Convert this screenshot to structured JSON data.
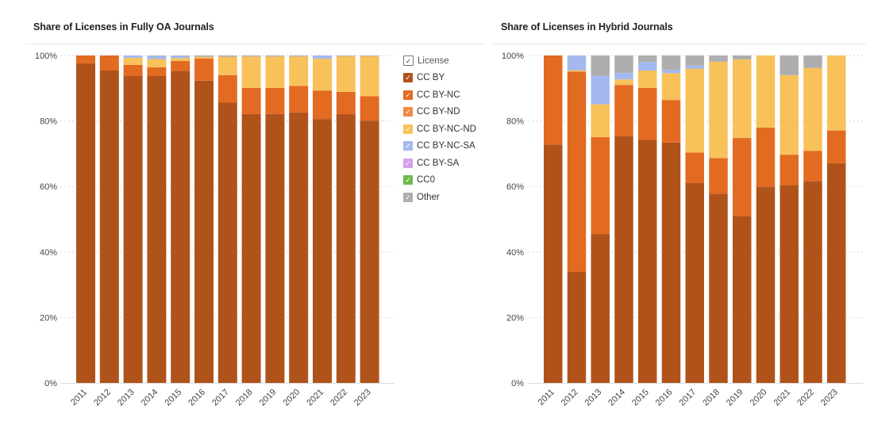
{
  "legend": {
    "header": "License",
    "items": [
      {
        "label": "CC BY",
        "color": "#b0531b"
      },
      {
        "label": "CC BY-NC",
        "color": "#e36a21"
      },
      {
        "label": "CC BY-ND",
        "color": "#f08a43"
      },
      {
        "label": "CC BY-NC-ND",
        "color": "#f8c15a"
      },
      {
        "label": "CC BY-NC-SA",
        "color": "#a3b9ef"
      },
      {
        "label": "CC BY-SA",
        "color": "#d3a1ea"
      },
      {
        "label": "CC0",
        "color": "#6fba4e"
      },
      {
        "label": "Other",
        "color": "#aeaeae"
      }
    ],
    "check_glyph": "✓"
  },
  "chart_data": [
    {
      "type": "bar",
      "stacked": true,
      "title": "Share of Licenses in Fully OA Journals",
      "xlabel": "",
      "ylabel": "",
      "ylim": [
        0,
        100
      ],
      "yticks": [
        "0%",
        "20%",
        "40%",
        "60%",
        "80%",
        "100%"
      ],
      "ytick_values": [
        0,
        20,
        40,
        60,
        80,
        100
      ],
      "grid": true,
      "legend": "right",
      "categories": [
        "2011",
        "2012",
        "2013",
        "2014",
        "2015",
        "2016",
        "2017",
        "2018",
        "2019",
        "2020",
        "2021",
        "2022",
        "2023"
      ],
      "series": [
        {
          "name": "CC BY",
          "values": [
            97.6,
            95.4,
            93.7,
            93.7,
            95.3,
            92.3,
            85.6,
            82.1,
            82.1,
            82.6,
            80.6,
            82.1,
            80.1
          ]
        },
        {
          "name": "CC BY-NC",
          "values": [
            2.4,
            4.6,
            3.4,
            2.7,
            3.0,
            6.8,
            8.4,
            8.0,
            8.0,
            8.1,
            8.7,
            6.8,
            7.5
          ]
        },
        {
          "name": "CC BY-ND",
          "values": [
            0,
            0,
            0,
            0,
            0,
            0,
            0,
            0,
            0,
            0,
            0,
            0,
            0
          ]
        },
        {
          "name": "CC BY-NC-ND",
          "values": [
            0,
            0,
            2.2,
            2.5,
            0.9,
            0.5,
            5.6,
            9.6,
            9.6,
            9.0,
            9.7,
            10.9,
            12.2
          ]
        },
        {
          "name": "CC BY-NC-SA",
          "values": [
            0,
            0,
            0.7,
            1.0,
            0.7,
            0,
            0,
            0,
            0,
            0,
            1.0,
            0,
            0
          ]
        },
        {
          "name": "CC BY-SA",
          "values": [
            0,
            0,
            0,
            0,
            0,
            0,
            0,
            0,
            0,
            0,
            0,
            0,
            0
          ]
        },
        {
          "name": "CC0",
          "values": [
            0,
            0,
            0,
            0,
            0,
            0,
            0,
            0,
            0,
            0,
            0,
            0,
            0
          ]
        },
        {
          "name": "Other",
          "values": [
            0,
            0,
            0,
            0.1,
            0.1,
            0.4,
            0.4,
            0.3,
            0.3,
            0.3,
            0,
            0.2,
            0.2
          ]
        }
      ]
    },
    {
      "type": "bar",
      "stacked": true,
      "title": "Share of Licenses in Hybrid Journals",
      "xlabel": "",
      "ylabel": "",
      "ylim": [
        0,
        100
      ],
      "yticks": [
        "0%",
        "20%",
        "40%",
        "60%",
        "80%",
        "100%"
      ],
      "ytick_values": [
        0,
        20,
        40,
        60,
        80,
        100
      ],
      "grid": true,
      "legend": "none",
      "categories": [
        "2011",
        "2012",
        "2013",
        "2014",
        "2015",
        "2016",
        "2017",
        "2018",
        "2019",
        "2020",
        "2021",
        "2022",
        "2023"
      ],
      "series": [
        {
          "name": "CC BY",
          "values": [
            72.8,
            34.0,
            45.5,
            75.4,
            74.2,
            73.4,
            61.1,
            57.8,
            51.0,
            59.9,
            60.4,
            61.6,
            67.1
          ]
        },
        {
          "name": "CC BY-NC",
          "values": [
            27.2,
            61.1,
            29.6,
            15.6,
            15.9,
            13.0,
            9.3,
            10.9,
            23.8,
            18.1,
            9.3,
            9.3,
            10.0
          ]
        },
        {
          "name": "CC BY-ND",
          "values": [
            0,
            0,
            0,
            0,
            0,
            0,
            0,
            0,
            0,
            0,
            0,
            0,
            0
          ]
        },
        {
          "name": "CC BY-NC-ND",
          "values": [
            0,
            0.4,
            10.0,
            1.7,
            5.3,
            8.2,
            25.6,
            29.4,
            24.0,
            22.0,
            24.3,
            25.3,
            22.9
          ]
        },
        {
          "name": "CC BY-NC-SA",
          "values": [
            0,
            4.5,
            8.7,
            2.0,
            2.6,
            1.0,
            0.9,
            0,
            0,
            0,
            0,
            0,
            0
          ]
        },
        {
          "name": "CC BY-SA",
          "values": [
            0,
            0,
            0,
            0,
            0,
            0,
            0,
            0,
            0,
            0,
            0,
            0,
            0
          ]
        },
        {
          "name": "CC0",
          "values": [
            0,
            0,
            0,
            0,
            0,
            0,
            0,
            0,
            0,
            0,
            0,
            0,
            0
          ]
        },
        {
          "name": "Other",
          "values": [
            0,
            0,
            6.2,
            5.3,
            2.0,
            4.4,
            3.1,
            1.9,
            1.2,
            0,
            6.0,
            3.8,
            0
          ]
        }
      ]
    }
  ]
}
